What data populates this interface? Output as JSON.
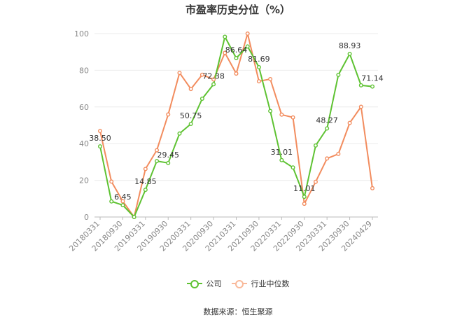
{
  "chart_data": {
    "type": "line",
    "title": "市盈率历史分位（%）",
    "ylim": [
      0,
      100
    ],
    "yticks": [
      0,
      20,
      40,
      60,
      80,
      100
    ],
    "x_tick_labels": [
      "20180331",
      "20180930",
      "20190331",
      "20190930",
      "20200331",
      "20200930",
      "20210331",
      "20210930",
      "20220331",
      "20220930",
      "20230331",
      "20230930",
      "20240429"
    ],
    "grid": true,
    "legend_position": "bottom",
    "series": [
      {
        "name": "公司",
        "color": "#5ec232",
        "values": [
          38.5,
          8.5,
          6.45,
          0,
          14.85,
          30.5,
          29.45,
          45.5,
          50.75,
          64.5,
          72.38,
          98.3,
          86.64,
          93.0,
          81.69,
          57.8,
          31.01,
          27.0,
          11.01,
          39.0,
          48.27,
          77.5,
          88.93,
          71.8,
          71.14
        ]
      },
      {
        "name": "行业中位数",
        "color": "#f28c5e",
        "values": [
          46.9,
          19.3,
          8.6,
          0,
          26.2,
          36.4,
          55.9,
          78.6,
          69.8,
          77.6,
          75.0,
          89.5,
          78.2,
          100.0,
          74.0,
          75.2,
          55.8,
          54.3,
          7.2,
          19.2,
          31.9,
          34.4,
          51.3,
          60.1,
          15.7
        ]
      }
    ],
    "data_labels": [
      {
        "series": 0,
        "index": 0,
        "text": "38.50"
      },
      {
        "series": 0,
        "index": 2,
        "text": "6.45"
      },
      {
        "series": 0,
        "index": 4,
        "text": "14.85"
      },
      {
        "series": 0,
        "index": 6,
        "text": "29.45"
      },
      {
        "series": 0,
        "index": 8,
        "text": "50.75"
      },
      {
        "series": 0,
        "index": 10,
        "text": "72.38"
      },
      {
        "series": 0,
        "index": 12,
        "text": "86.64"
      },
      {
        "series": 0,
        "index": 14,
        "text": "81.69"
      },
      {
        "series": 0,
        "index": 16,
        "text": "31.01"
      },
      {
        "series": 0,
        "index": 18,
        "text": "11.01"
      },
      {
        "series": 0,
        "index": 20,
        "text": "48.27"
      },
      {
        "series": 0,
        "index": 22,
        "text": "88.93"
      },
      {
        "series": 0,
        "index": 24,
        "text": "71.14"
      }
    ]
  },
  "legend": {
    "items": [
      {
        "label": "公司",
        "color": "#5ec232"
      },
      {
        "label": "行业中位数",
        "color": "#f9b99a"
      }
    ]
  },
  "source": "数据来源：恒生聚源"
}
